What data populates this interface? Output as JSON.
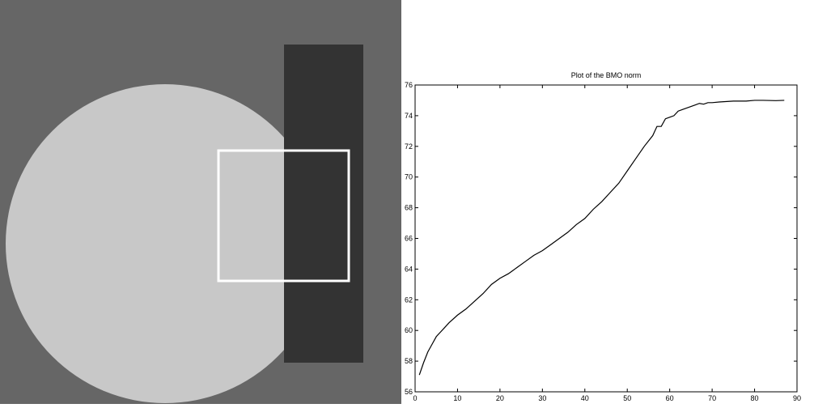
{
  "image_panel": {
    "background_color": "#666666",
    "circle_color": "#c8c8c8",
    "rectangle_color": "#333333",
    "selection_box_color": "#ffffff"
  },
  "chart_data": {
    "type": "line",
    "title": "Plot of the BMO norm",
    "xlabel": "",
    "ylabel": "",
    "xlim": [
      0,
      90
    ],
    "ylim": [
      56,
      76
    ],
    "xticks": [
      0,
      10,
      20,
      30,
      40,
      50,
      60,
      70,
      80,
      90
    ],
    "yticks": [
      56,
      58,
      60,
      62,
      64,
      66,
      68,
      70,
      72,
      74,
      76
    ],
    "grid": false,
    "line_color": "#000000",
    "series": [
      {
        "x": [
          1,
          2,
          3,
          4,
          5,
          6,
          7,
          8,
          10,
          12,
          14,
          16,
          18,
          20,
          22,
          24,
          26,
          28,
          30,
          32,
          34,
          36,
          38,
          40,
          42,
          44,
          46,
          48,
          50,
          52,
          54,
          56,
          57,
          58,
          59,
          60,
          61,
          62,
          63,
          64,
          65,
          66,
          67,
          68,
          69,
          70,
          72,
          75,
          78,
          80,
          82,
          85,
          87
        ],
        "y": [
          57.1,
          57.9,
          58.6,
          59.1,
          59.6,
          59.9,
          60.2,
          60.5,
          61.0,
          61.4,
          61.9,
          62.4,
          63.0,
          63.4,
          63.7,
          64.1,
          64.5,
          64.9,
          65.2,
          65.6,
          66.0,
          66.4,
          66.9,
          67.3,
          67.9,
          68.4,
          69.0,
          69.6,
          70.4,
          71.2,
          72.0,
          72.7,
          73.3,
          73.3,
          73.8,
          73.9,
          74.0,
          74.3,
          74.4,
          74.5,
          74.6,
          74.7,
          74.8,
          74.75,
          74.85,
          74.85,
          74.9,
          74.95,
          74.95,
          75.0,
          75.0,
          74.98,
          75.0
        ]
      }
    ]
  }
}
